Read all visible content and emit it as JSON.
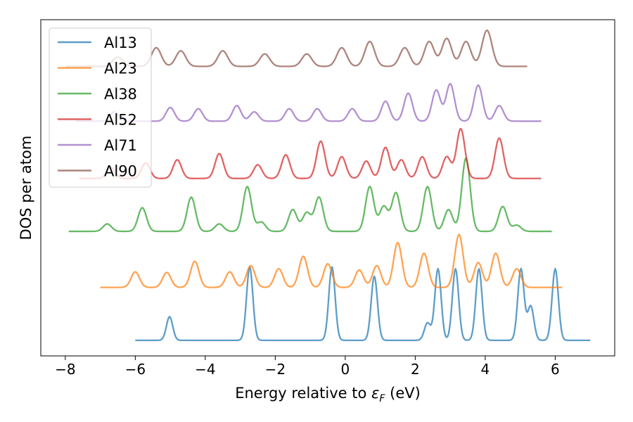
{
  "chart_data": {
    "type": "line",
    "title": "",
    "xlabel": "Energy relative to ",
    "xlabel_symbol": "ε",
    "xlabel_subscript": "F",
    "xlabel_suffix": " (eV)",
    "ylabel": "DOS per atom",
    "xlim": [
      -8.7,
      7.7
    ],
    "ylim": [
      -0.25,
      5.15
    ],
    "xticks": [
      -8,
      -6,
      -4,
      -2,
      0,
      2,
      4,
      6
    ],
    "xtick_labels": [
      "−8",
      "−6",
      "−4",
      "−2",
      "0",
      "2",
      "4",
      "6"
    ],
    "yticks_visible": false,
    "grid": false,
    "legend_position": "upper-left",
    "series": [
      {
        "name": "Al13",
        "color": "#1f77b4",
        "x_range": [
          -6.0,
          7.0
        ],
        "offset": 0.0,
        "sigma": 0.09,
        "peaks": [
          [
            -5.02,
            0.38
          ],
          [
            -2.73,
            1.18
          ],
          [
            -0.38,
            1.18
          ],
          [
            0.83,
            1.03
          ],
          [
            2.35,
            0.28
          ],
          [
            2.65,
            1.15
          ],
          [
            3.15,
            1.15
          ],
          [
            3.82,
            1.15
          ],
          [
            5.02,
            1.15
          ],
          [
            5.3,
            0.55
          ],
          [
            6.0,
            1.15
          ]
        ]
      },
      {
        "name": "Al23",
        "color": "#ff7f0e",
        "x_range": [
          -7.0,
          6.2
        ],
        "offset": 0.85,
        "sigma": 0.12,
        "peaks": [
          [
            -6.0,
            0.25
          ],
          [
            -5.1,
            0.24
          ],
          [
            -4.3,
            0.42
          ],
          [
            -3.3,
            0.25
          ],
          [
            -2.7,
            0.35
          ],
          [
            -1.9,
            0.3
          ],
          [
            -1.2,
            0.5
          ],
          [
            -0.5,
            0.38
          ],
          [
            0.4,
            0.28
          ],
          [
            0.9,
            0.35
          ],
          [
            1.5,
            0.72
          ],
          [
            2.25,
            0.55
          ],
          [
            3.25,
            0.85
          ],
          [
            3.8,
            0.4
          ],
          [
            4.3,
            0.55
          ],
          [
            4.9,
            0.3
          ]
        ]
      },
      {
        "name": "Al38",
        "color": "#2ca02c",
        "x_range": [
          -7.9,
          5.9
        ],
        "offset": 1.75,
        "sigma": 0.12,
        "peaks": [
          [
            -6.8,
            0.12
          ],
          [
            -5.8,
            0.38
          ],
          [
            -4.4,
            0.55
          ],
          [
            -3.6,
            0.12
          ],
          [
            -2.8,
            0.72
          ],
          [
            -2.4,
            0.15
          ],
          [
            -1.5,
            0.35
          ],
          [
            -1.1,
            0.3
          ],
          [
            -0.75,
            0.55
          ],
          [
            0.7,
            0.72
          ],
          [
            1.1,
            0.4
          ],
          [
            1.45,
            0.62
          ],
          [
            2.35,
            0.72
          ],
          [
            2.95,
            0.35
          ],
          [
            3.45,
            1.18
          ],
          [
            4.5,
            0.4
          ],
          [
            4.9,
            0.1
          ]
        ]
      },
      {
        "name": "Al52",
        "color": "#d62728",
        "x_range": [
          -7.6,
          5.6
        ],
        "offset": 2.6,
        "sigma": 0.12,
        "peaks": [
          [
            -6.7,
            0.18
          ],
          [
            -5.7,
            0.25
          ],
          [
            -4.8,
            0.3
          ],
          [
            -3.6,
            0.4
          ],
          [
            -2.5,
            0.22
          ],
          [
            -1.7,
            0.38
          ],
          [
            -0.7,
            0.6
          ],
          [
            -0.1,
            0.35
          ],
          [
            0.6,
            0.28
          ],
          [
            1.15,
            0.5
          ],
          [
            1.6,
            0.3
          ],
          [
            2.2,
            0.35
          ],
          [
            2.9,
            0.35
          ],
          [
            3.3,
            0.8
          ],
          [
            4.4,
            0.65
          ]
        ]
      },
      {
        "name": "Al71",
        "color": "#9467bd",
        "x_range": [
          -7.7,
          5.6
        ],
        "offset": 3.52,
        "sigma": 0.12,
        "peaks": [
          [
            -6.6,
            0.15
          ],
          [
            -5.0,
            0.22
          ],
          [
            -4.2,
            0.2
          ],
          [
            -3.1,
            0.25
          ],
          [
            -2.6,
            0.15
          ],
          [
            -1.6,
            0.2
          ],
          [
            -0.8,
            0.2
          ],
          [
            0.2,
            0.2
          ],
          [
            1.15,
            0.32
          ],
          [
            1.8,
            0.45
          ],
          [
            2.6,
            0.5
          ],
          [
            3.0,
            0.6
          ],
          [
            3.8,
            0.58
          ],
          [
            4.4,
            0.25
          ]
        ]
      },
      {
        "name": "Al90",
        "color": "#8c564b",
        "x_range": [
          -8.0,
          5.2
        ],
        "offset": 4.4,
        "sigma": 0.14,
        "peaks": [
          [
            -6.5,
            0.15
          ],
          [
            -5.4,
            0.3
          ],
          [
            -4.7,
            0.25
          ],
          [
            -3.5,
            0.25
          ],
          [
            -2.3,
            0.2
          ],
          [
            -1.1,
            0.2
          ],
          [
            -0.1,
            0.3
          ],
          [
            0.7,
            0.4
          ],
          [
            1.7,
            0.3
          ],
          [
            2.4,
            0.4
          ],
          [
            2.9,
            0.45
          ],
          [
            3.45,
            0.4
          ],
          [
            4.05,
            0.58
          ]
        ]
      }
    ]
  }
}
